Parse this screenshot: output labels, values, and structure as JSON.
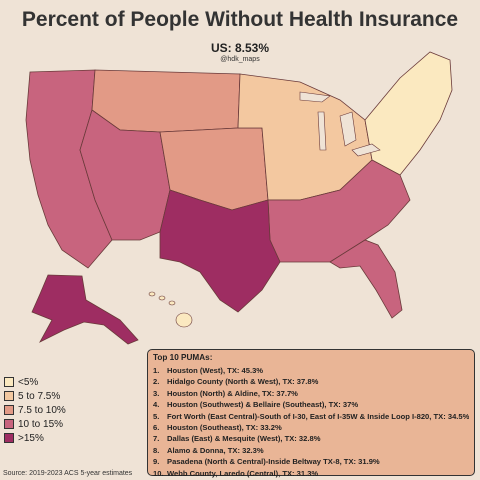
{
  "header": {
    "title": "Percent of People Without Health Insurance",
    "subtitle": "US: 8.53%",
    "handle": "@hdk_maps"
  },
  "legend": {
    "title": "",
    "items": [
      {
        "label": "<5%",
        "color": "#fbe9c0"
      },
      {
        "label": "5 to 7.5%",
        "color": "#f3c8a0"
      },
      {
        "label": "7.5 to 10%",
        "color": "#e29a86"
      },
      {
        "label": "10 to 15%",
        "color": "#c8647e"
      },
      {
        "label": ">15%",
        "color": "#9e2d62"
      }
    ]
  },
  "top10": {
    "title": "Top 10 PUMAs:",
    "items": [
      {
        "rank": "1.",
        "text": "Houston (West), TX: 45.3%"
      },
      {
        "rank": "2.",
        "text": "Hidalgo County (North & West), TX: 37.8%"
      },
      {
        "rank": "3.",
        "text": "Houston (North) & Aldine, TX: 37.7%"
      },
      {
        "rank": "4.",
        "text": "Houston (Southwest) & Bellaire (Southeast), TX: 37%"
      },
      {
        "rank": "5.",
        "text": "Fort Worth (East Central)-South of I-30, East of I-35W & Inside Loop I-820, TX: 34.5%"
      },
      {
        "rank": "6.",
        "text": "Houston (Southeast), TX: 33.2%"
      },
      {
        "rank": "7.",
        "text": "Dallas (East) & Mesquite (West), TX: 32.8%"
      },
      {
        "rank": "8.",
        "text": "Alamo & Donna, TX: 32.3%"
      },
      {
        "rank": "9.",
        "text": "Pasadena (North & Central)-Inside Beltway TX-8, TX: 31.9%"
      },
      {
        "rank": "10.",
        "text": "Webb County, Laredo (Central), TX: 31.3%"
      }
    ]
  },
  "source": "Source: 2019-2023 ACS 5-year estimates",
  "regions": {
    "west": {
      "level": 3
    },
    "northwest": {
      "level": 2
    },
    "plains": {
      "level": 2
    },
    "midwest": {
      "level": 1
    },
    "northeast": {
      "level": 0
    },
    "southeast": {
      "level": 3
    },
    "texas": {
      "level": 4
    },
    "florida": {
      "level": 3
    },
    "alaska": {
      "level": 4
    },
    "hawaii": {
      "level": 0
    }
  }
}
